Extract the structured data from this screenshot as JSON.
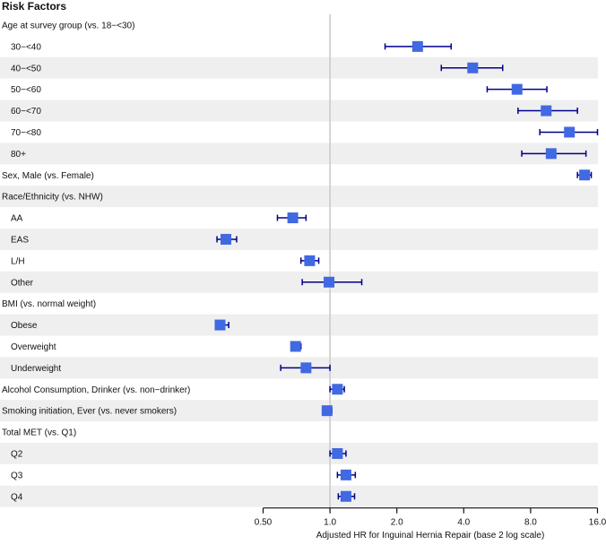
{
  "chart_data": {
    "type": "forest",
    "title": "Risk Factors",
    "xlabel": "Adjusted HR for Inguinal Hernia Repair (base 2 log scale)",
    "xscale": "log2",
    "xlim": [
      0.5,
      16
    ],
    "xticks": [
      0.5,
      1,
      2,
      4,
      8,
      16
    ],
    "xtick_labels": [
      "0.50",
      "1.0",
      "2.0",
      "4.0",
      "8.0",
      "16.0"
    ],
    "reference_line": 1,
    "colors": {
      "marker": "#4169e1",
      "ci": "#00008b",
      "shade": "#efefef",
      "ref": "#c8c8c8"
    },
    "rows": [
      {
        "label": "Age at survey group (vs. 18−<30)",
        "header": true
      },
      {
        "label": "30−<40",
        "indent": true,
        "hr": 2.48,
        "lo": 1.77,
        "hi": 3.51
      },
      {
        "label": "40−<50",
        "indent": true,
        "hr": 4.39,
        "lo": 3.17,
        "hi": 5.99
      },
      {
        "label": "50−<60",
        "indent": true,
        "hr": 6.95,
        "lo": 5.1,
        "hi": 9.47
      },
      {
        "label": "60−<70",
        "indent": true,
        "hr": 9.4,
        "lo": 7.02,
        "hi": 13.0
      },
      {
        "label": "70−<80",
        "indent": true,
        "hr": 11.96,
        "lo": 8.8,
        "hi": 16.0
      },
      {
        "label": "80+",
        "indent": true,
        "hr": 9.9,
        "lo": 7.3,
        "hi": 14.2
      },
      {
        "label": "Sex, Male (vs. Female)",
        "hr": 14.0,
        "lo": 13.0,
        "hi": 15.0
      },
      {
        "label": "Race/Ethnicity (vs. NHW)",
        "header": true
      },
      {
        "label": "AA",
        "indent": true,
        "hr": 0.68,
        "lo": 0.58,
        "hi": 0.78
      },
      {
        "label": "EAS",
        "indent": true,
        "hr": 0.34,
        "lo": 0.31,
        "hi": 0.38
      },
      {
        "label": "L/H",
        "indent": true,
        "hr": 0.81,
        "lo": 0.74,
        "hi": 0.89
      },
      {
        "label": "Other",
        "indent": true,
        "hr": 0.99,
        "lo": 0.75,
        "hi": 1.39
      },
      {
        "label": "BMI (vs. normal weight)",
        "header": true
      },
      {
        "label": "Obese",
        "indent": true,
        "hr": 0.32,
        "lo": 0.31,
        "hi": 0.35
      },
      {
        "label": "Overweight",
        "indent": true,
        "hr": 0.7,
        "lo": 0.67,
        "hi": 0.74
      },
      {
        "label": "Underweight",
        "indent": true,
        "hr": 0.78,
        "lo": 0.6,
        "hi": 1.0
      },
      {
        "label": "Alcohol Consumption, Drinker (vs. non−drinker)",
        "hr": 1.08,
        "lo": 1.0,
        "hi": 1.16
      },
      {
        "label": "Smoking initiation, Ever (vs. never smokers)",
        "hr": 0.97,
        "lo": 0.94,
        "hi": 1.02
      },
      {
        "label": "Total MET (vs. Q1)",
        "header": true
      },
      {
        "label": "Q2",
        "indent": true,
        "hr": 1.08,
        "lo": 1.0,
        "hi": 1.18
      },
      {
        "label": "Q3",
        "indent": true,
        "hr": 1.18,
        "lo": 1.08,
        "hi": 1.3
      },
      {
        "label": "Q4",
        "indent": true,
        "hr": 1.18,
        "lo": 1.09,
        "hi": 1.29
      }
    ]
  }
}
